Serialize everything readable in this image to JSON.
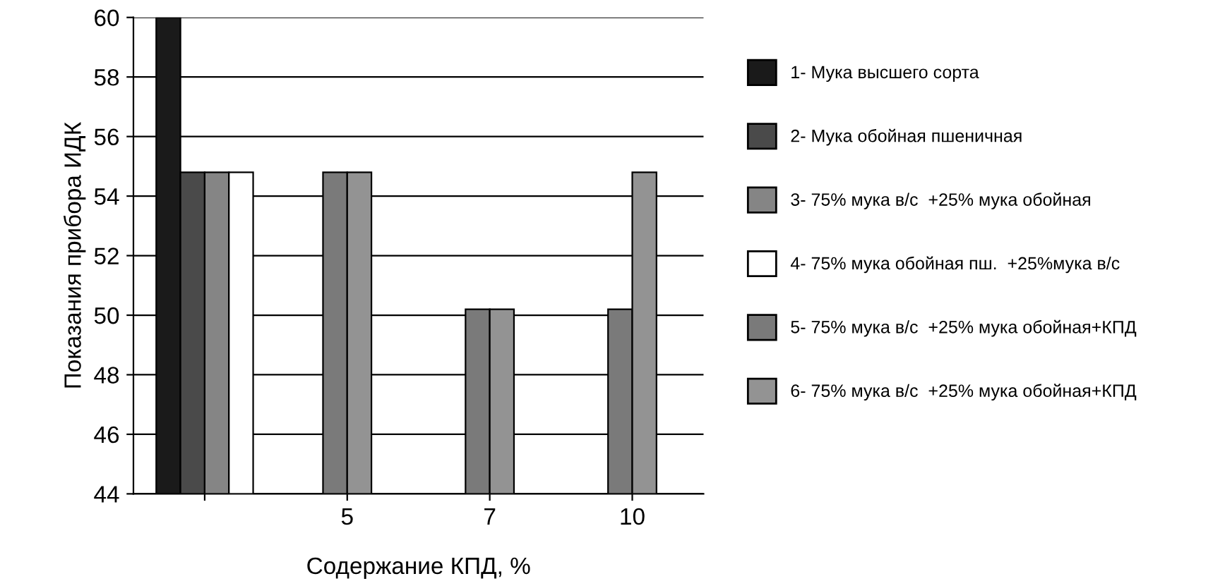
{
  "chart_data": {
    "type": "bar",
    "xlabel": "Содержание КПД, %",
    "ylabel": "Показания прибора ИДК",
    "categories": [
      null,
      "5",
      "7",
      "10"
    ],
    "series": [
      {
        "name": "1- Мука высшего сорта",
        "color": "#1a1a1a",
        "values": [
          60,
          null,
          null,
          null
        ]
      },
      {
        "name": "2- Мука обойная пшеничная",
        "color": "#4a4a4a",
        "values": [
          54.8,
          null,
          null,
          null
        ]
      },
      {
        "name": "3- 75% мука в/с  +25% мука обойная",
        "color": "#858585",
        "values": [
          54.8,
          null,
          null,
          null
        ]
      },
      {
        "name": "4- 75% мука обойная пш.  +25%мука в/с",
        "color": "#ffffff",
        "values": [
          54.8,
          null,
          null,
          null
        ]
      },
      {
        "name": "5- 75% мука в/с  +25% мука обойная+КПД",
        "color": "#7a7a7a",
        "values": [
          null,
          54.8,
          50.2,
          50.2
        ]
      },
      {
        "name": "6- 75% мука в/с  +25% мука обойная+КПД",
        "color": "#939393",
        "values": [
          null,
          54.8,
          50.2,
          54.8
        ]
      }
    ],
    "ylim": [
      44,
      60
    ],
    "yticks": [
      44,
      46,
      48,
      50,
      52,
      54,
      56,
      58,
      60
    ],
    "grid": "y",
    "legend": "right"
  }
}
